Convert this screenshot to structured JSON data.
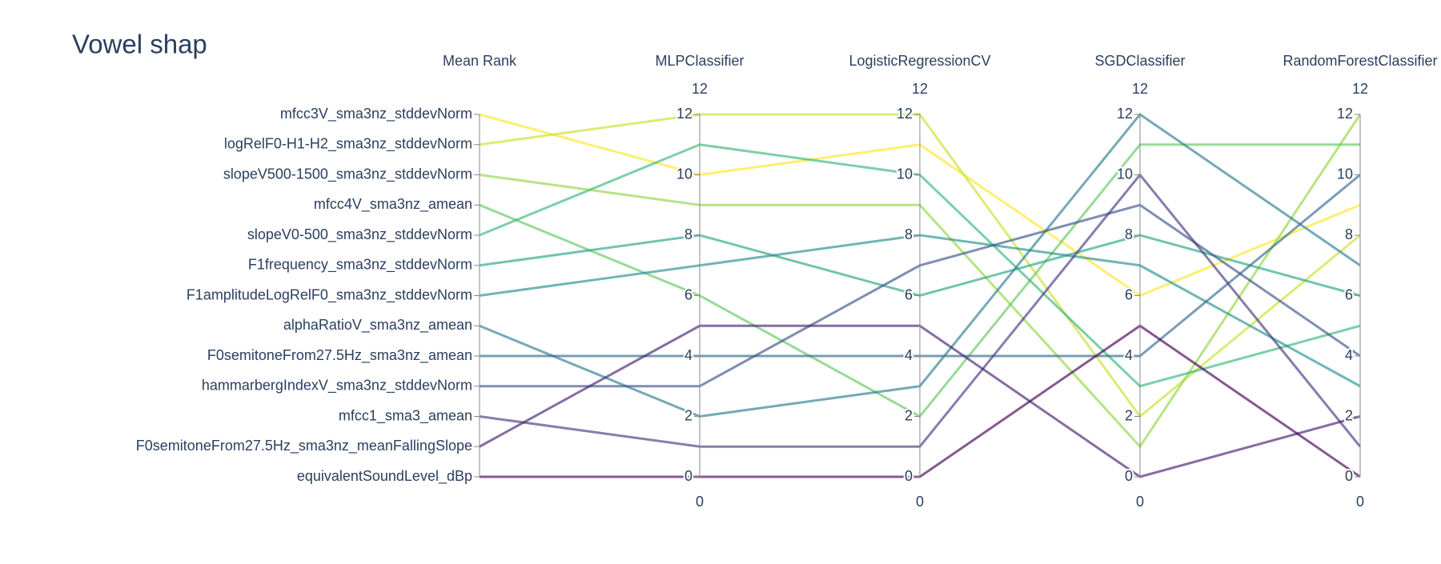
{
  "chart_data": {
    "type": "parcoords",
    "title": "Vowel shap",
    "colorscale": [
      "#440154",
      "#482878",
      "#3e4989",
      "#31688e",
      "#26828e",
      "#1f9e89",
      "#35b779",
      "#6ece58",
      "#b5de2b",
      "#fde725"
    ],
    "dimensions": [
      {
        "label": "Mean Rank",
        "range": [
          0,
          12
        ],
        "ticks": [
          {
            "value": 12,
            "label": "mfcc3V_sma3nz_stddevNorm"
          },
          {
            "value": 11,
            "label": "logRelF0-H1-H2_sma3nz_stddevNorm"
          },
          {
            "value": 10,
            "label": "slopeV500-1500_sma3nz_stddevNorm"
          },
          {
            "value": 9,
            "label": "mfcc4V_sma3nz_amean"
          },
          {
            "value": 8,
            "label": "slopeV0-500_sma3nz_stddevNorm"
          },
          {
            "value": 7,
            "label": "F1frequency_sma3nz_stddevNorm"
          },
          {
            "value": 6,
            "label": "F1amplitudeLogRelF0_sma3nz_stddevNorm"
          },
          {
            "value": 5,
            "label": "alphaRatioV_sma3nz_amean"
          },
          {
            "value": 4,
            "label": "F0semitoneFrom27.5Hz_sma3nz_amean"
          },
          {
            "value": 3,
            "label": "hammarbergIndexV_sma3nz_stddevNorm"
          },
          {
            "value": 2,
            "label": "mfcc1_sma3_amean"
          },
          {
            "value": 1,
            "label": "F0semitoneFrom27.5Hz_sma3nz_meanFallingSlope"
          },
          {
            "value": 0,
            "label": "equivalentSoundLevel_dBp"
          }
        ],
        "values": [
          12,
          11,
          10,
          9,
          8,
          7,
          6,
          5,
          4,
          3,
          2,
          1,
          0
        ]
      },
      {
        "label": "MLPClassifier",
        "range": [
          0,
          12
        ],
        "ticks": [
          0,
          2,
          4,
          6,
          8,
          10,
          12
        ],
        "values": [
          10,
          12,
          9,
          6,
          11,
          8,
          7,
          2,
          4,
          3,
          1,
          5,
          0
        ]
      },
      {
        "label": "LogisticRegressionCV",
        "range": [
          0,
          12
        ],
        "ticks": [
          0,
          2,
          4,
          6,
          8,
          10,
          12
        ],
        "values": [
          11,
          12,
          9,
          2,
          10,
          6,
          8,
          3,
          4,
          7,
          1,
          5,
          0
        ]
      },
      {
        "label": "SGDClassifier",
        "range": [
          0,
          12
        ],
        "ticks": [
          0,
          2,
          4,
          6,
          8,
          10,
          12
        ],
        "values": [
          6,
          2,
          1,
          11,
          3,
          8,
          7,
          12,
          4,
          9,
          10,
          0,
          5
        ]
      },
      {
        "label": "RandomForestClassifier",
        "range": [
          0,
          12
        ],
        "ticks": [
          0,
          2,
          4,
          6,
          8,
          10,
          12
        ],
        "values": [
          9,
          8,
          12,
          11,
          5,
          6,
          3,
          7,
          10,
          4,
          1,
          2,
          0
        ]
      }
    ]
  }
}
